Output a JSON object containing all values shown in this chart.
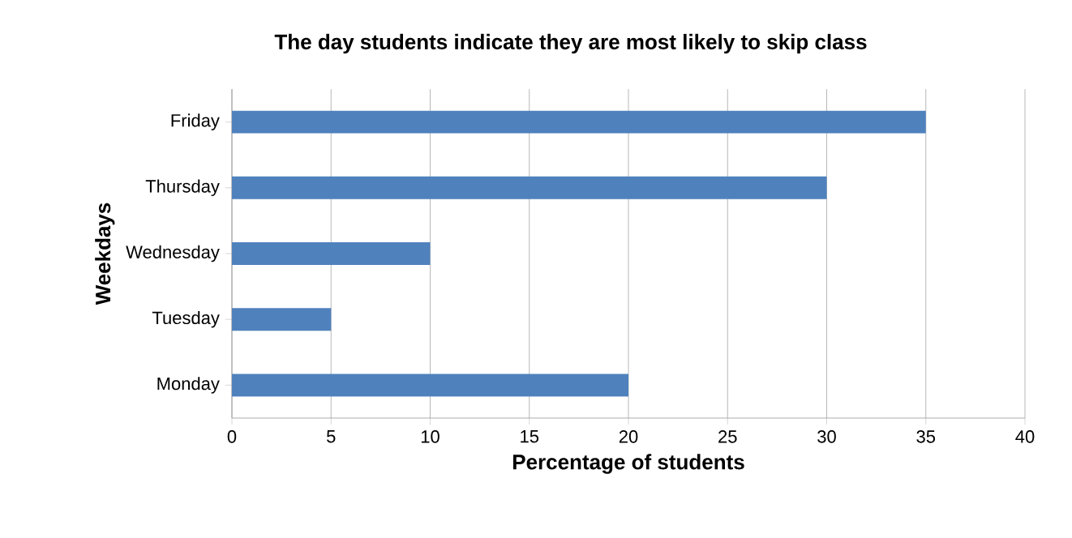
{
  "chart_data": {
    "type": "bar",
    "orientation": "horizontal",
    "title": "The day students indicate they are most likely to skip class",
    "xlabel": "Percentage of students",
    "ylabel": "Weekdays",
    "categories": [
      "Friday",
      "Thursday",
      "Wednesday",
      "Tuesday",
      "Monday"
    ],
    "values": [
      35,
      30,
      10,
      5,
      20
    ],
    "color": "#4f81bd",
    "xlim": [
      0,
      40
    ],
    "xticks": [
      0,
      5,
      10,
      15,
      20,
      25,
      30,
      35,
      40
    ],
    "grid": "x"
  }
}
